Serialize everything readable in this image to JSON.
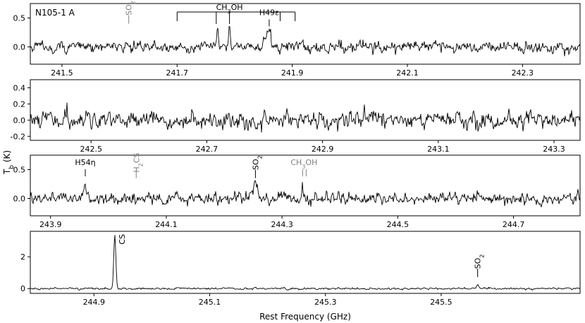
{
  "chart_data": {
    "type": "line",
    "panel_label": "N105-1 A",
    "xlabel": "Rest Frequency (GHz)",
    "ylabel": "T_b (K)",
    "line_color": "#000000",
    "marker_colors": {
      "detected": "#000000",
      "tentative": "#808080"
    },
    "panels": [
      {
        "xlim": [
          241.445,
          242.4
        ],
        "ylim": [
          -0.3,
          0.75
        ],
        "xticks": [
          "241.5",
          "241.7",
          "241.9",
          "242.1",
          "242.3"
        ],
        "xtick_values": [
          241.5,
          241.7,
          241.9,
          242.1,
          242.3
        ],
        "yticks": [
          "0.0",
          "0.5"
        ],
        "ytick_values": [
          0.0,
          0.5
        ],
        "noise": 0.08,
        "peaks": [
          {
            "x": 241.77,
            "amp": 0.38,
            "width": 0.0015
          },
          {
            "x": 241.791,
            "amp": 0.45,
            "width": 0.0015
          },
          {
            "x": 241.855,
            "amp": 0.15,
            "width": 0.004
          },
          {
            "x": 241.862,
            "amp": 0.14,
            "width": 0.004
          }
        ],
        "lines": [
          {
            "label": "SO2",
            "x": 241.616,
            "color": "gray",
            "rotated": true,
            "y_text": 0.67
          },
          {
            "label": "H49ε",
            "x": 241.86,
            "color": "black",
            "rotated": false,
            "y_text": 0.5
          }
        ],
        "bracket": {
          "label": "CH3OH",
          "x_start": 241.7,
          "x_end": 241.905,
          "y": 0.76,
          "ticks": [
            241.7,
            241.768,
            241.791,
            241.879,
            241.905
          ]
        }
      },
      {
        "xlim": [
          242.395,
          243.345
        ],
        "ylim": [
          -0.25,
          0.5
        ],
        "xticks": [
          "242.5",
          "242.7",
          "242.9",
          "243.1",
          "243.3"
        ],
        "xtick_values": [
          242.5,
          242.7,
          242.9,
          243.1,
          243.3
        ],
        "yticks": [
          "-0.2",
          "0.0",
          "0.2",
          "0.4"
        ],
        "ytick_values": [
          -0.2,
          0.0,
          0.2,
          0.4
        ],
        "noise": 0.09,
        "peaks": [],
        "lines": []
      },
      {
        "xlim": [
          243.865,
          244.815
        ],
        "ylim": [
          -0.3,
          0.75
        ],
        "xticks": [
          "243.9",
          "244.1",
          "244.3",
          "244.5",
          "244.7"
        ],
        "xtick_values": [
          243.9,
          244.1,
          244.3,
          244.5,
          244.7
        ],
        "yticks": [
          "0.0",
          "0.5"
        ],
        "ytick_values": [
          0.0,
          0.5
        ],
        "noise": 0.08,
        "peaks": [
          {
            "x": 243.958,
            "amp": 0.14,
            "width": 0.004
          },
          {
            "x": 244.254,
            "amp": 0.28,
            "width": 0.003
          },
          {
            "x": 244.335,
            "amp": 0.22,
            "width": 0.0015
          }
        ],
        "lines": [
          {
            "label": "H54η",
            "x": 243.96,
            "color": "black",
            "rotated": false,
            "y_text": 0.53
          },
          {
            "label": "H2CS",
            "x": 244.048,
            "color": "gray",
            "rotated": true,
            "y_text": 0.62
          },
          {
            "label": "SO2",
            "x": 244.254,
            "color": "black",
            "rotated": true,
            "y_text": 0.62
          },
          {
            "label": "CH3OH",
            "x": 244.338,
            "color": "gray",
            "rotated": false,
            "y_text": 0.53,
            "double_tick": true
          }
        ]
      },
      {
        "xlim": [
          244.79,
          245.74
        ],
        "ylim": [
          -0.3,
          3.6
        ],
        "xticks": [
          "244.9",
          "245.1",
          "245.3",
          "245.5"
        ],
        "xtick_values": [
          244.9,
          245.1,
          245.3,
          245.5
        ],
        "yticks": [
          "0",
          "2"
        ],
        "ytick_values": [
          0,
          2
        ],
        "noise": 0.05,
        "peaks": [
          {
            "x": 244.936,
            "amp": 3.35,
            "width": 0.0018
          },
          {
            "x": 245.563,
            "amp": 0.22,
            "width": 0.002
          }
        ],
        "lines": [
          {
            "label": "CS",
            "x": 244.936,
            "color": "black",
            "rotated": true,
            "y_text": 3.1,
            "offset_right": true
          },
          {
            "label": "SO2",
            "x": 245.563,
            "color": "black",
            "rotated": true,
            "y_text": 1.7
          }
        ]
      }
    ]
  }
}
